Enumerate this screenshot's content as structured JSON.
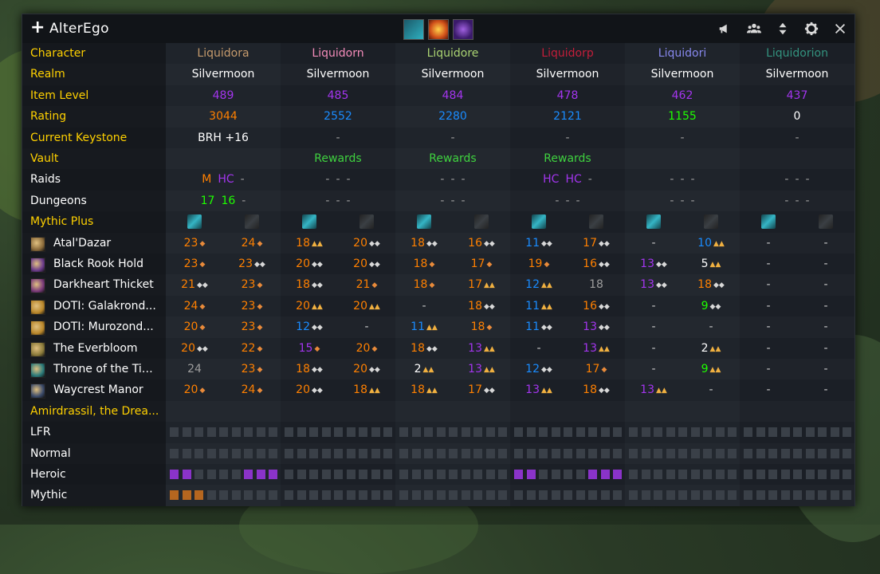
{
  "window": {
    "title": "AlterEgo"
  },
  "colors": {
    "yellow": "#ffd100",
    "orange": "#ff8000",
    "purple": "#a335ee",
    "blue": "#1a8cff",
    "green": "#1eff00",
    "gray": "#9d9d9d",
    "rewards": "#3fd23f",
    "empty_square": "#3a4048",
    "heroic_square": "#8a33c9",
    "mythic_square": "#b5661f"
  },
  "affixes": [
    {
      "name": "affix-1",
      "color": "#2a8a94"
    },
    {
      "name": "affix-2",
      "color": "#e0701a"
    },
    {
      "name": "affix-3",
      "color": "#5e2a9a"
    }
  ],
  "labels": {
    "character": "Character",
    "realm": "Realm",
    "item_level": "Item Level",
    "rating": "Rating",
    "current_keystone": "Current Keystone",
    "vault": "Vault",
    "raids": "Raids",
    "dungeons": "Dungeons",
    "mythic_plus": "Mythic Plus",
    "raid_name": "Amirdrassil, the Drea...",
    "lfr": "LFR",
    "normal": "Normal",
    "heroic": "Heroic",
    "mythic": "Mythic"
  },
  "characters": [
    {
      "name": "Liquidora",
      "color": "#c69b6d",
      "realm": "Silvermoon",
      "ilvl": "489",
      "ilvl_color": "#a335ee",
      "rating": "3044",
      "rating_color": "#ff8000",
      "keystone": "BRH +16",
      "vault": "",
      "raids": [
        {
          "t": "M",
          "c": "#ff8000"
        },
        {
          "t": "HC",
          "c": "#a335ee"
        },
        {
          "t": "-",
          "c": "#9d9d9d"
        }
      ],
      "dungeons": [
        {
          "t": "17",
          "c": "#1eff00"
        },
        {
          "t": "16",
          "c": "#1eff00"
        },
        {
          "t": "-",
          "c": "#9d9d9d"
        }
      ],
      "heroic": [
        1,
        1,
        0,
        0,
        0,
        0,
        1,
        1,
        1,
        0
      ],
      "mythic": [
        1,
        1,
        1,
        0,
        0,
        0,
        0,
        0,
        0,
        0
      ]
    },
    {
      "name": "Liquidorn",
      "color": "#f48cba",
      "realm": "Silvermoon",
      "ilvl": "485",
      "ilvl_color": "#a335ee",
      "rating": "2552",
      "rating_color": "#1a8cff",
      "keystone": "-",
      "vault": "Rewards",
      "raids": [
        {
          "t": "-",
          "c": "#9d9d9d"
        },
        {
          "t": "-",
          "c": "#9d9d9d"
        },
        {
          "t": "-",
          "c": "#9d9d9d"
        }
      ],
      "dungeons": [
        {
          "t": "-",
          "c": "#9d9d9d"
        },
        {
          "t": "-",
          "c": "#9d9d9d"
        },
        {
          "t": "-",
          "c": "#9d9d9d"
        }
      ],
      "heroic": [
        0,
        0,
        0,
        0,
        0,
        0,
        0,
        0,
        0,
        0
      ],
      "mythic": [
        0,
        0,
        0,
        0,
        0,
        0,
        0,
        0,
        0,
        0
      ]
    },
    {
      "name": "Liquidore",
      "color": "#aad372",
      "realm": "Silvermoon",
      "ilvl": "484",
      "ilvl_color": "#a335ee",
      "rating": "2280",
      "rating_color": "#1a8cff",
      "keystone": "-",
      "vault": "Rewards",
      "raids": [
        {
          "t": "-",
          "c": "#9d9d9d"
        },
        {
          "t": "-",
          "c": "#9d9d9d"
        },
        {
          "t": "-",
          "c": "#9d9d9d"
        }
      ],
      "dungeons": [
        {
          "t": "-",
          "c": "#9d9d9d"
        },
        {
          "t": "-",
          "c": "#9d9d9d"
        },
        {
          "t": "-",
          "c": "#9d9d9d"
        }
      ],
      "heroic": [
        0,
        0,
        0,
        0,
        0,
        0,
        0,
        0,
        0,
        0
      ],
      "mythic": [
        0,
        0,
        0,
        0,
        0,
        0,
        0,
        0,
        0,
        0
      ]
    },
    {
      "name": "Liquidorp",
      "color": "#c41e3a",
      "realm": "Silvermoon",
      "ilvl": "478",
      "ilvl_color": "#a335ee",
      "rating": "2121",
      "rating_color": "#1a8cff",
      "keystone": "-",
      "vault": "Rewards",
      "raids": [
        {
          "t": "HC",
          "c": "#a335ee"
        },
        {
          "t": "HC",
          "c": "#a335ee"
        },
        {
          "t": "-",
          "c": "#9d9d9d"
        }
      ],
      "dungeons": [
        {
          "t": "-",
          "c": "#9d9d9d"
        },
        {
          "t": "-",
          "c": "#9d9d9d"
        },
        {
          "t": "-",
          "c": "#9d9d9d"
        }
      ],
      "heroic": [
        1,
        1,
        0,
        0,
        0,
        0,
        1,
        1,
        1,
        0
      ],
      "mythic": [
        0,
        0,
        0,
        0,
        0,
        0,
        0,
        0,
        0,
        0
      ]
    },
    {
      "name": "Liquidori",
      "color": "#8788ee",
      "realm": "Silvermoon",
      "ilvl": "462",
      "ilvl_color": "#a335ee",
      "rating": "1155",
      "rating_color": "#1eff00",
      "keystone": "-",
      "vault": "",
      "raids": [
        {
          "t": "-",
          "c": "#9d9d9d"
        },
        {
          "t": "-",
          "c": "#9d9d9d"
        },
        {
          "t": "-",
          "c": "#9d9d9d"
        }
      ],
      "dungeons": [
        {
          "t": "-",
          "c": "#9d9d9d"
        },
        {
          "t": "-",
          "c": "#9d9d9d"
        },
        {
          "t": "-",
          "c": "#9d9d9d"
        }
      ],
      "heroic": [
        0,
        0,
        0,
        0,
        0,
        0,
        0,
        0,
        0,
        0
      ],
      "mythic": [
        0,
        0,
        0,
        0,
        0,
        0,
        0,
        0,
        0,
        0
      ]
    },
    {
      "name": "Liquidorion",
      "color": "#33937f",
      "realm": "Silvermoon",
      "ilvl": "437",
      "ilvl_color": "#a335ee",
      "rating": "0",
      "rating_color": "#ffffff",
      "keystone": "-",
      "vault": "",
      "raids": [
        {
          "t": "-",
          "c": "#9d9d9d"
        },
        {
          "t": "-",
          "c": "#9d9d9d"
        },
        {
          "t": "-",
          "c": "#9d9d9d"
        }
      ],
      "dungeons": [
        {
          "t": "-",
          "c": "#9d9d9d"
        },
        {
          "t": "-",
          "c": "#9d9d9d"
        },
        {
          "t": "-",
          "c": "#9d9d9d"
        }
      ],
      "heroic": [
        0,
        0,
        0,
        0,
        0,
        0,
        0,
        0,
        0,
        0
      ],
      "mythic": [
        0,
        0,
        0,
        0,
        0,
        0,
        0,
        0,
        0,
        0
      ]
    }
  ],
  "dungeons": [
    {
      "name": "Atal'Dazar",
      "icon_color": "#8a6a3a",
      "runs": [
        [
          "23",
          "o",
          1
        ],
        [
          "24",
          "o",
          1
        ],
        [
          "18",
          "o",
          3
        ],
        [
          "20",
          "o",
          2
        ],
        [
          "18",
          "o",
          2
        ],
        [
          "16",
          "o",
          2
        ],
        [
          "11",
          "b",
          2
        ],
        [
          "17",
          "o",
          2
        ],
        [
          "-",
          "d",
          0
        ],
        [
          "10",
          "b",
          3
        ],
        [
          "-",
          "d",
          0
        ],
        [
          "-",
          "d",
          0
        ]
      ]
    },
    {
      "name": "Black Rook Hold",
      "icon_color": "#6a3a8a",
      "runs": [
        [
          "23",
          "o",
          1
        ],
        [
          "23",
          "o",
          2
        ],
        [
          "20",
          "o",
          2
        ],
        [
          "20",
          "o",
          2
        ],
        [
          "18",
          "o",
          1
        ],
        [
          "17",
          "o",
          1
        ],
        [
          "19",
          "o",
          1
        ],
        [
          "16",
          "o",
          2
        ],
        [
          "13",
          "p",
          2
        ],
        [
          "5",
          "w",
          3
        ],
        [
          "-",
          "d",
          0
        ],
        [
          "-",
          "d",
          0
        ]
      ]
    },
    {
      "name": "Darkheart Thicket",
      "icon_color": "#7a3a7a",
      "runs": [
        [
          "21",
          "o",
          2
        ],
        [
          "23",
          "o",
          1
        ],
        [
          "18",
          "o",
          2
        ],
        [
          "21",
          "o",
          1
        ],
        [
          "18",
          "o",
          1
        ],
        [
          "17",
          "o",
          3
        ],
        [
          "12",
          "b",
          3
        ],
        [
          "18",
          "g",
          0
        ],
        [
          "13",
          "p",
          2
        ],
        [
          "18",
          "o",
          2
        ],
        [
          "-",
          "d",
          0
        ],
        [
          "-",
          "d",
          0
        ]
      ]
    },
    {
      "name": "DOTI: Galakrond...",
      "icon_color": "#b8862a",
      "runs": [
        [
          "24",
          "o",
          1
        ],
        [
          "23",
          "o",
          1
        ],
        [
          "20",
          "o",
          3
        ],
        [
          "20",
          "o",
          3
        ],
        [
          "-",
          "d",
          0
        ],
        [
          "18",
          "o",
          2
        ],
        [
          "11",
          "b",
          3
        ],
        [
          "16",
          "o",
          2
        ],
        [
          "-",
          "d",
          0
        ],
        [
          "9",
          "gr",
          2
        ],
        [
          "-",
          "d",
          0
        ],
        [
          "-",
          "d",
          0
        ]
      ]
    },
    {
      "name": "DOTI: Murozond...",
      "icon_color": "#b8862a",
      "runs": [
        [
          "20",
          "o",
          1
        ],
        [
          "23",
          "o",
          1
        ],
        [
          "12",
          "b",
          2
        ],
        [
          "-",
          "d",
          0
        ],
        [
          "11",
          "b",
          3
        ],
        [
          "18",
          "o",
          1
        ],
        [
          "11",
          "b",
          2
        ],
        [
          "13",
          "p",
          2
        ],
        [
          "-",
          "d",
          0
        ],
        [
          "-",
          "d",
          0
        ],
        [
          "-",
          "d",
          0
        ],
        [
          "-",
          "d",
          0
        ]
      ]
    },
    {
      "name": "The Everbloom",
      "icon_color": "#8a7a3a",
      "runs": [
        [
          "20",
          "o",
          2
        ],
        [
          "22",
          "o",
          1
        ],
        [
          "15",
          "p",
          1
        ],
        [
          "20",
          "o",
          1
        ],
        [
          "18",
          "o",
          2
        ],
        [
          "13",
          "p",
          3
        ],
        [
          "-",
          "d",
          0
        ],
        [
          "13",
          "p",
          3
        ],
        [
          "-",
          "d",
          0
        ],
        [
          "2",
          "w",
          3
        ],
        [
          "-",
          "d",
          0
        ],
        [
          "-",
          "d",
          0
        ]
      ]
    },
    {
      "name": "Throne of the Tid...",
      "icon_color": "#2a7a7a",
      "runs": [
        [
          "24",
          "g",
          0
        ],
        [
          "23",
          "o",
          1
        ],
        [
          "18",
          "o",
          2
        ],
        [
          "20",
          "o",
          2
        ],
        [
          "2",
          "w",
          3
        ],
        [
          "13",
          "p",
          3
        ],
        [
          "12",
          "b",
          2
        ],
        [
          "17",
          "o",
          1
        ],
        [
          "-",
          "d",
          0
        ],
        [
          "9",
          "gr",
          3
        ],
        [
          "-",
          "d",
          0
        ],
        [
          "-",
          "d",
          0
        ]
      ]
    },
    {
      "name": "Waycrest Manor",
      "icon_color": "#3a4a6a",
      "runs": [
        [
          "20",
          "o",
          1
        ],
        [
          "24",
          "o",
          1
        ],
        [
          "20",
          "o",
          2
        ],
        [
          "18",
          "o",
          3
        ],
        [
          "18",
          "o",
          3
        ],
        [
          "17",
          "o",
          2
        ],
        [
          "13",
          "p",
          3
        ],
        [
          "18",
          "o",
          2
        ],
        [
          "13",
          "p",
          3
        ],
        [
          "-",
          "d",
          0
        ],
        [
          "-",
          "d",
          0
        ],
        [
          "-",
          "d",
          0
        ]
      ]
    }
  ]
}
